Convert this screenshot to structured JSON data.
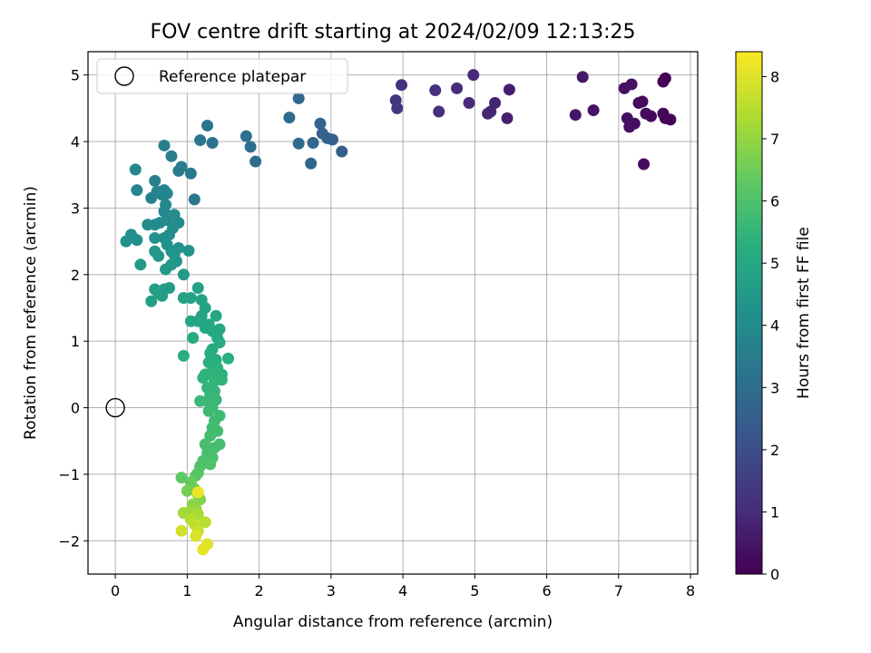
{
  "chart_data": {
    "type": "scatter",
    "title": "FOV centre drift starting at 2024/02/09 12:13:25",
    "xlabel": "Angular distance from reference (arcmin)",
    "ylabel": "Rotation from reference (arcmin)",
    "xlim": [
      -0.38,
      8.1
    ],
    "ylim": [
      -2.5,
      5.35
    ],
    "xticks": [
      0,
      1,
      2,
      3,
      4,
      5,
      6,
      7,
      8
    ],
    "yticks": [
      -2,
      -1,
      0,
      1,
      2,
      3,
      4,
      5
    ],
    "grid": true,
    "colormap": "viridis",
    "colorbar": {
      "label": "Hours from first FF file",
      "min": 0,
      "max": 8.4,
      "ticks": [
        0,
        1,
        2,
        3,
        4,
        5,
        6,
        7,
        8
      ]
    },
    "legend": {
      "placement": "top-left",
      "entries": [
        {
          "label": "Reference platepar",
          "marker": "hollow-circle"
        }
      ]
    },
    "reference_point": {
      "x": 0,
      "y": 0
    },
    "points": [
      [
        7.65,
        4.95,
        0.05
      ],
      [
        7.62,
        4.9,
        0.08
      ],
      [
        7.72,
        4.33,
        0.1
      ],
      [
        7.65,
        4.35,
        0.12
      ],
      [
        7.62,
        4.42,
        0.15
      ],
      [
        7.45,
        4.38,
        0.18
      ],
      [
        7.38,
        4.42,
        0.2
      ],
      [
        7.33,
        4.6,
        0.22
      ],
      [
        7.28,
        4.58,
        0.25
      ],
      [
        7.35,
        3.66,
        0.27
      ],
      [
        7.22,
        4.27,
        0.3
      ],
      [
        7.15,
        4.22,
        0.32
      ],
      [
        7.12,
        4.35,
        0.35
      ],
      [
        7.18,
        4.86,
        0.38
      ],
      [
        7.08,
        4.8,
        0.4
      ],
      [
        6.65,
        4.47,
        0.45
      ],
      [
        6.4,
        4.4,
        0.5
      ],
      [
        6.5,
        4.97,
        0.55
      ],
      [
        5.48,
        4.78,
        0.7
      ],
      [
        5.45,
        4.35,
        0.75
      ],
      [
        5.28,
        4.58,
        0.8
      ],
      [
        5.22,
        4.45,
        0.85
      ],
      [
        5.18,
        4.42,
        0.9
      ],
      [
        4.98,
        5.0,
        0.95
      ],
      [
        4.92,
        4.58,
        1.0
      ],
      [
        4.75,
        4.8,
        1.05
      ],
      [
        4.5,
        4.45,
        1.1
      ],
      [
        4.45,
        4.77,
        1.15
      ],
      [
        3.98,
        4.85,
        1.2
      ],
      [
        3.9,
        4.62,
        1.25
      ],
      [
        3.92,
        4.5,
        1.3
      ],
      [
        3.15,
        3.85,
        2.5
      ],
      [
        3.02,
        4.03,
        2.55
      ],
      [
        2.95,
        4.05,
        2.6
      ],
      [
        2.88,
        4.12,
        2.65
      ],
      [
        2.85,
        4.27,
        2.7
      ],
      [
        2.75,
        3.98,
        2.75
      ],
      [
        2.72,
        3.67,
        2.8
      ],
      [
        2.55,
        4.65,
        2.85
      ],
      [
        2.55,
        3.97,
        2.9
      ],
      [
        2.42,
        4.36,
        2.95
      ],
      [
        1.95,
        3.7,
        3.0
      ],
      [
        1.88,
        3.92,
        3.05
      ],
      [
        1.82,
        4.08,
        3.1
      ],
      [
        1.35,
        3.98,
        3.2
      ],
      [
        1.28,
        4.24,
        3.25
      ],
      [
        1.18,
        4.02,
        3.3
      ],
      [
        1.1,
        3.13,
        3.35
      ],
      [
        1.05,
        3.52,
        3.4
      ],
      [
        0.92,
        3.62,
        3.45
      ],
      [
        0.88,
        3.56,
        3.5
      ],
      [
        0.78,
        3.78,
        3.55
      ],
      [
        0.68,
        3.94,
        3.6
      ],
      [
        0.55,
        3.41,
        3.65
      ],
      [
        0.5,
        3.15,
        3.7
      ],
      [
        0.65,
        3.2,
        3.72
      ],
      [
        0.58,
        3.25,
        3.75
      ],
      [
        0.68,
        3.27,
        3.78
      ],
      [
        0.72,
        3.22,
        3.8
      ],
      [
        0.3,
        3.27,
        3.82
      ],
      [
        0.28,
        3.58,
        3.85
      ],
      [
        0.7,
        3.05,
        3.88
      ],
      [
        0.68,
        2.95,
        3.9
      ],
      [
        0.72,
        2.82,
        3.92
      ],
      [
        0.62,
        2.78,
        3.95
      ],
      [
        0.55,
        2.75,
        3.98
      ],
      [
        0.45,
        2.75,
        4.0
      ],
      [
        0.82,
        2.9,
        4.02
      ],
      [
        0.88,
        2.78,
        4.05
      ],
      [
        0.8,
        2.7,
        4.08
      ],
      [
        0.75,
        2.6,
        4.1
      ],
      [
        0.68,
        2.55,
        4.12
      ],
      [
        0.55,
        2.55,
        4.15
      ],
      [
        0.3,
        2.52,
        4.18
      ],
      [
        0.22,
        2.6,
        4.2
      ],
      [
        0.15,
        2.5,
        4.22
      ],
      [
        0.72,
        2.45,
        4.25
      ],
      [
        0.78,
        2.35,
        4.28
      ],
      [
        0.82,
        2.3,
        4.3
      ],
      [
        0.88,
        2.4,
        4.32
      ],
      [
        1.02,
        2.36,
        4.35
      ],
      [
        0.6,
        2.28,
        4.38
      ],
      [
        0.55,
        2.35,
        4.4
      ],
      [
        0.85,
        2.2,
        4.42
      ],
      [
        0.78,
        2.15,
        4.45
      ],
      [
        0.7,
        2.08,
        4.48
      ],
      [
        0.35,
        2.15,
        4.5
      ],
      [
        0.95,
        2.0,
        4.55
      ],
      [
        0.75,
        1.8,
        4.6
      ],
      [
        0.68,
        1.78,
        4.62
      ],
      [
        0.6,
        1.72,
        4.65
      ],
      [
        0.55,
        1.78,
        4.68
      ],
      [
        0.5,
        1.6,
        4.7
      ],
      [
        0.65,
        1.68,
        4.72
      ],
      [
        1.15,
        1.8,
        4.75
      ],
      [
        1.2,
        1.62,
        4.78
      ],
      [
        0.95,
        1.65,
        4.8
      ],
      [
        1.05,
        1.65,
        4.82
      ],
      [
        1.25,
        1.5,
        4.85
      ],
      [
        1.2,
        1.38,
        4.88
      ],
      [
        1.15,
        1.3,
        4.9
      ],
      [
        1.05,
        1.3,
        4.92
      ],
      [
        1.4,
        1.38,
        4.95
      ],
      [
        1.3,
        1.25,
        4.98
      ],
      [
        1.25,
        1.2,
        5.0
      ],
      [
        1.45,
        1.18,
        5.02
      ],
      [
        1.35,
        1.15,
        5.05
      ],
      [
        1.42,
        1.05,
        5.08
      ],
      [
        1.08,
        1.05,
        5.1
      ],
      [
        1.45,
        0.98,
        5.12
      ],
      [
        1.35,
        0.88,
        5.15
      ],
      [
        1.32,
        0.82,
        5.18
      ],
      [
        0.95,
        0.78,
        5.2
      ],
      [
        1.4,
        0.72,
        5.22
      ],
      [
        1.57,
        0.74,
        5.25
      ],
      [
        1.3,
        0.68,
        5.28
      ],
      [
        1.42,
        0.6,
        5.3
      ],
      [
        1.48,
        0.5,
        5.32
      ],
      [
        1.35,
        0.55,
        5.35
      ],
      [
        1.25,
        0.5,
        5.38
      ],
      [
        1.22,
        0.45,
        5.4
      ],
      [
        1.48,
        0.42,
        5.42
      ],
      [
        1.38,
        0.4,
        5.45
      ],
      [
        1.28,
        0.3,
        5.48
      ],
      [
        1.38,
        0.25,
        5.5
      ],
      [
        1.32,
        0.2,
        5.52
      ],
      [
        1.38,
        0.15,
        5.55
      ],
      [
        1.4,
        0.12,
        5.58
      ],
      [
        1.28,
        0.1,
        5.6
      ],
      [
        1.18,
        0.1,
        5.62
      ],
      [
        1.35,
        0.0,
        5.65
      ],
      [
        1.3,
        -0.05,
        5.68
      ],
      [
        1.45,
        -0.12,
        5.7
      ],
      [
        1.38,
        -0.2,
        5.72
      ],
      [
        1.35,
        -0.3,
        5.75
      ],
      [
        1.42,
        -0.35,
        5.78
      ],
      [
        1.32,
        -0.42,
        5.8
      ],
      [
        1.45,
        -0.55,
        5.82
      ],
      [
        1.38,
        -0.6,
        5.85
      ],
      [
        1.25,
        -0.55,
        5.88
      ],
      [
        1.28,
        -0.68,
        5.9
      ],
      [
        1.35,
        -0.75,
        5.92
      ],
      [
        1.22,
        -0.8,
        5.95
      ],
      [
        1.32,
        -0.85,
        5.98
      ],
      [
        1.18,
        -0.88,
        6.0
      ],
      [
        1.15,
        -0.98,
        6.1
      ],
      [
        1.12,
        -1.02,
        6.2
      ],
      [
        0.92,
        -1.05,
        6.3
      ],
      [
        1.05,
        -1.12,
        6.4
      ],
      [
        1.1,
        -1.22,
        6.5
      ],
      [
        1.0,
        -1.25,
        6.6
      ],
      [
        1.15,
        -1.3,
        6.7
      ],
      [
        1.18,
        -1.38,
        6.8
      ],
      [
        1.08,
        -1.45,
        6.9
      ],
      [
        1.12,
        -1.52,
        7.0
      ],
      [
        1.05,
        -1.55,
        7.1
      ],
      [
        0.95,
        -1.58,
        7.2
      ],
      [
        1.15,
        -1.6,
        7.3
      ],
      [
        1.05,
        -1.68,
        7.4
      ],
      [
        1.25,
        -1.72,
        7.5
      ],
      [
        1.1,
        -1.75,
        7.6
      ],
      [
        1.15,
        -1.85,
        7.7
      ],
      [
        0.92,
        -1.85,
        7.8
      ],
      [
        1.12,
        -1.93,
        7.9
      ],
      [
        1.28,
        -2.05,
        8.0
      ],
      [
        1.22,
        -2.13,
        8.1
      ],
      [
        1.15,
        -1.27,
        8.2
      ]
    ]
  }
}
